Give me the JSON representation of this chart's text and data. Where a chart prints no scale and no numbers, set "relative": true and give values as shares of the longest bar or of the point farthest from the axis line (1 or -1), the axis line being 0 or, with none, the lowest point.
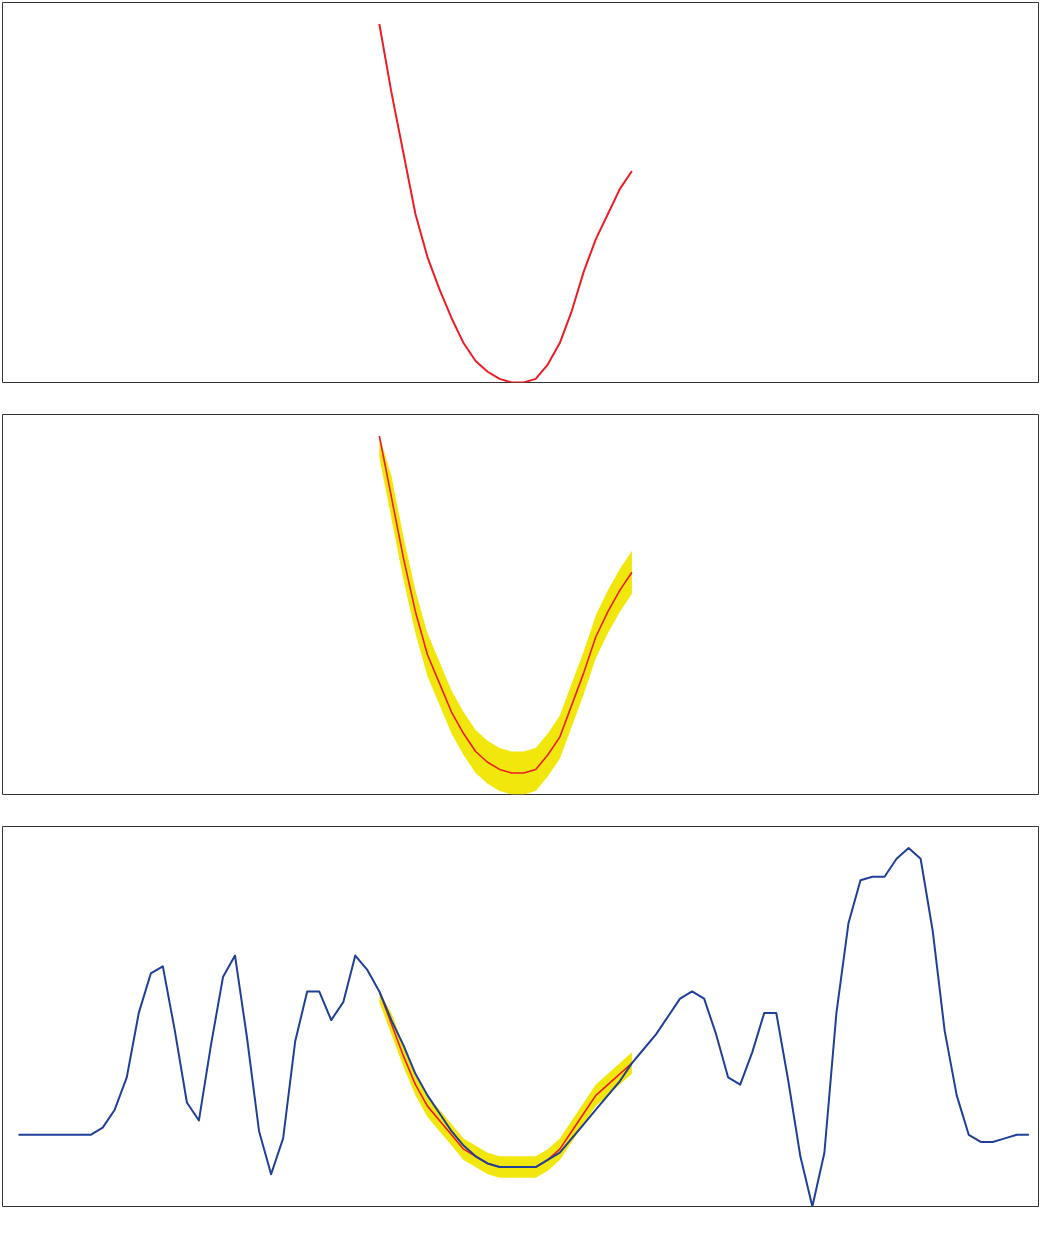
{
  "chart_data": [
    {
      "type": "line",
      "relative": true,
      "categories": [
        null,
        null,
        null,
        null,
        null,
        null,
        null,
        null,
        null,
        null,
        null,
        null,
        null,
        null,
        null,
        null,
        null,
        null,
        null,
        null,
        null,
        null,
        null,
        null,
        null,
        null,
        null,
        null,
        null,
        null,
        null,
        null,
        null,
        null,
        null,
        null,
        null,
        null,
        null,
        null,
        null,
        null,
        null,
        null,
        null,
        null,
        null,
        null,
        null,
        null,
        null,
        null,
        null,
        null,
        null,
        null,
        null,
        null,
        null,
        null,
        null,
        null,
        null,
        null,
        null,
        null,
        null,
        null,
        null,
        null,
        null,
        null,
        null,
        null,
        null,
        null,
        null,
        null,
        null,
        null,
        null,
        null,
        null,
        null,
        null
      ],
      "series": [
        {
          "color": "#ee1c24",
          "values": [
            null,
            null,
            null,
            null,
            null,
            null,
            null,
            null,
            null,
            null,
            null,
            null,
            null,
            null,
            null,
            null,
            null,
            null,
            null,
            null,
            null,
            null,
            null,
            null,
            null,
            null,
            null,
            null,
            null,
            null,
            1.0,
            0.81,
            0.64,
            0.47,
            0.35,
            0.26,
            0.18,
            0.11,
            0.06,
            0.03,
            0.01,
            0,
            0,
            0.01,
            0.05,
            0.11,
            0.2,
            0.31,
            0.4,
            0.47,
            0.54,
            0.59,
            null,
            null,
            null,
            null,
            null,
            null,
            null,
            null,
            null,
            null,
            null,
            null,
            null,
            null,
            null,
            null,
            null,
            null,
            null,
            null,
            null,
            null,
            null,
            null,
            null,
            null,
            null,
            null,
            null,
            null,
            null,
            null,
            null
          ]
        }
      ]
    },
    {
      "type": "line",
      "relative": true,
      "categories": [
        null,
        null,
        null,
        null,
        null,
        null,
        null,
        null,
        null,
        null,
        null,
        null,
        null,
        null,
        null,
        null,
        null,
        null,
        null,
        null,
        null,
        null,
        null,
        null,
        null,
        null,
        null,
        null,
        null,
        null,
        null,
        null,
        null,
        null,
        null,
        null,
        null,
        null,
        null,
        null,
        null,
        null,
        null,
        null,
        null,
        null,
        null,
        null,
        null,
        null,
        null,
        null,
        null,
        null,
        null,
        null,
        null,
        null,
        null,
        null,
        null,
        null,
        null,
        null,
        null,
        null,
        null,
        null,
        null,
        null,
        null,
        null,
        null,
        null,
        null,
        null,
        null,
        null,
        null,
        null,
        null,
        null,
        null,
        null,
        null
      ],
      "series": [
        {
          "color": "#ee1c24",
          "values": [
            null,
            null,
            null,
            null,
            null,
            null,
            null,
            null,
            null,
            null,
            null,
            null,
            null,
            null,
            null,
            null,
            null,
            null,
            null,
            null,
            null,
            null,
            null,
            null,
            null,
            null,
            null,
            null,
            null,
            null,
            1.0,
            0.83,
            0.66,
            0.51,
            0.39,
            0.31,
            0.23,
            0.17,
            0.12,
            0.09,
            0.07,
            0.06,
            0.06,
            0.07,
            0.11,
            0.16,
            0.25,
            0.34,
            0.44,
            0.51,
            0.57,
            0.62,
            null,
            null,
            null,
            null,
            null,
            null,
            null,
            null,
            null,
            null,
            null,
            null,
            null,
            null,
            null,
            null,
            null,
            null,
            null,
            null,
            null,
            null,
            null,
            null,
            null,
            null,
            null,
            null,
            null,
            null,
            null,
            null,
            null
          ],
          "lower": [
            null,
            null,
            null,
            null,
            null,
            null,
            null,
            null,
            null,
            null,
            null,
            null,
            null,
            null,
            null,
            null,
            null,
            null,
            null,
            null,
            null,
            null,
            null,
            null,
            null,
            null,
            null,
            null,
            null,
            null,
            0.94,
            0.77,
            0.6,
            0.45,
            0.33,
            0.25,
            0.17,
            0.11,
            0.06,
            0.03,
            0.01,
            0,
            0,
            0.01,
            0.05,
            0.1,
            0.19,
            0.28,
            0.38,
            0.45,
            0.51,
            0.56,
            null,
            null,
            null,
            null,
            null,
            null,
            null,
            null,
            null,
            null,
            null,
            null,
            null,
            null,
            null,
            null,
            null,
            null,
            null,
            null,
            null,
            null,
            null,
            null,
            null,
            null,
            null,
            null,
            null,
            null,
            null,
            null,
            null
          ],
          "upper": [
            null,
            null,
            null,
            null,
            null,
            null,
            null,
            null,
            null,
            null,
            null,
            null,
            null,
            null,
            null,
            null,
            null,
            null,
            null,
            null,
            null,
            null,
            null,
            null,
            null,
            null,
            null,
            null,
            null,
            null,
            1.0,
            0.89,
            0.72,
            0.57,
            0.45,
            0.37,
            0.29,
            0.23,
            0.18,
            0.15,
            0.13,
            0.12,
            0.12,
            0.13,
            0.17,
            0.22,
            0.31,
            0.4,
            0.5,
            0.57,
            0.63,
            0.68,
            null,
            null,
            null,
            null,
            null,
            null,
            null,
            null,
            null,
            null,
            null,
            null,
            null,
            null,
            null,
            null,
            null,
            null,
            null,
            null,
            null,
            null,
            null,
            null,
            null,
            null,
            null,
            null,
            null,
            null,
            null,
            null,
            null
          ]
        }
      ]
    },
    {
      "type": "line",
      "relative": true,
      "categories": [
        null,
        null,
        null,
        null,
        null,
        null,
        null,
        null,
        null,
        null,
        null,
        null,
        null,
        null,
        null,
        null,
        null,
        null,
        null,
        null,
        null,
        null,
        null,
        null,
        null,
        null,
        null,
        null,
        null,
        null,
        null,
        null,
        null,
        null,
        null,
        null,
        null,
        null,
        null,
        null,
        null,
        null,
        null,
        null,
        null,
        null,
        null,
        null,
        null,
        null,
        null,
        null,
        null,
        null,
        null,
        null,
        null,
        null,
        null,
        null,
        null,
        null,
        null,
        null,
        null,
        null,
        null,
        null,
        null,
        null,
        null,
        null,
        null,
        null,
        null,
        null,
        null,
        null,
        null,
        null,
        null,
        null,
        null,
        null,
        null
      ],
      "series": [
        {
          "color": "#ee1c24",
          "values": [
            null,
            null,
            null,
            null,
            null,
            null,
            null,
            null,
            null,
            null,
            null,
            null,
            null,
            null,
            null,
            null,
            null,
            null,
            null,
            null,
            null,
            null,
            null,
            null,
            null,
            null,
            null,
            null,
            null,
            null,
            0.6,
            0.51,
            0.42,
            0.34,
            0.28,
            0.24,
            0.2,
            0.16,
            0.14,
            0.12,
            0.11,
            0.11,
            0.11,
            0.11,
            0.13,
            0.16,
            0.21,
            0.26,
            0.31,
            0.34,
            0.37,
            0.4,
            null,
            null,
            null,
            null,
            null,
            null,
            null,
            null,
            null,
            null,
            null,
            null,
            null,
            null,
            null,
            null,
            null,
            null,
            null,
            null,
            null,
            null,
            null,
            null,
            null,
            null,
            null,
            null,
            null,
            null,
            null,
            null,
            null
          ],
          "lower": [
            null,
            null,
            null,
            null,
            null,
            null,
            null,
            null,
            null,
            null,
            null,
            null,
            null,
            null,
            null,
            null,
            null,
            null,
            null,
            null,
            null,
            null,
            null,
            null,
            null,
            null,
            null,
            null,
            null,
            null,
            0.57,
            0.48,
            0.39,
            0.31,
            0.25,
            0.21,
            0.17,
            0.13,
            0.11,
            0.09,
            0.08,
            0.08,
            0.08,
            0.08,
            0.1,
            0.13,
            0.18,
            0.23,
            0.28,
            0.31,
            0.34,
            0.37,
            null,
            null,
            null,
            null,
            null,
            null,
            null,
            null,
            null,
            null,
            null,
            null,
            null,
            null,
            null,
            null,
            null,
            null,
            null,
            null,
            null,
            null,
            null,
            null,
            null,
            null,
            null,
            null,
            null,
            null,
            null,
            null,
            null
          ],
          "upper": [
            null,
            null,
            null,
            null,
            null,
            null,
            null,
            null,
            null,
            null,
            null,
            null,
            null,
            null,
            null,
            null,
            null,
            null,
            null,
            null,
            null,
            null,
            null,
            null,
            null,
            null,
            null,
            null,
            null,
            null,
            0.6,
            0.54,
            0.45,
            0.37,
            0.31,
            0.27,
            0.23,
            0.19,
            0.17,
            0.15,
            0.14,
            0.14,
            0.14,
            0.14,
            0.16,
            0.19,
            0.24,
            0.29,
            0.34,
            0.37,
            0.4,
            0.43,
            null,
            null,
            null,
            null,
            null,
            null,
            null,
            null,
            null,
            null,
            null,
            null,
            null,
            null,
            null,
            null,
            null,
            null,
            null,
            null,
            null,
            null,
            null,
            null,
            null,
            null,
            null,
            null,
            null,
            null,
            null,
            null,
            null
          ]
        },
        {
          "color": "#1f3f99",
          "values": [
            0.2,
            0.2,
            0.2,
            0.2,
            0.2,
            0.2,
            0.2,
            0.22,
            0.27,
            0.36,
            0.54,
            0.65,
            0.67,
            0.49,
            0.29,
            0.24,
            0.45,
            0.64,
            0.7,
            0.47,
            0.21,
            0.09,
            0.19,
            0.46,
            0.6,
            0.6,
            0.52,
            0.57,
            0.7,
            0.66,
            0.6,
            0.52,
            0.45,
            0.37,
            0.31,
            0.26,
            0.21,
            0.17,
            0.14,
            0.12,
            0.11,
            0.11,
            0.11,
            0.11,
            0.13,
            0.15,
            0.19,
            0.23,
            0.27,
            0.31,
            0.35,
            0.4,
            0.44,
            0.48,
            0.53,
            0.58,
            0.6,
            0.58,
            0.48,
            0.36,
            0.34,
            0.43,
            0.54,
            0.54,
            0.35,
            0.14,
            0,
            0.15,
            0.54,
            0.79,
            0.91,
            0.92,
            0.92,
            0.97,
            1,
            0.97,
            0.77,
            0.49,
            0.31,
            0.2,
            0.18,
            0.18,
            0.19,
            0.2,
            0.2
          ]
        }
      ]
    }
  ]
}
